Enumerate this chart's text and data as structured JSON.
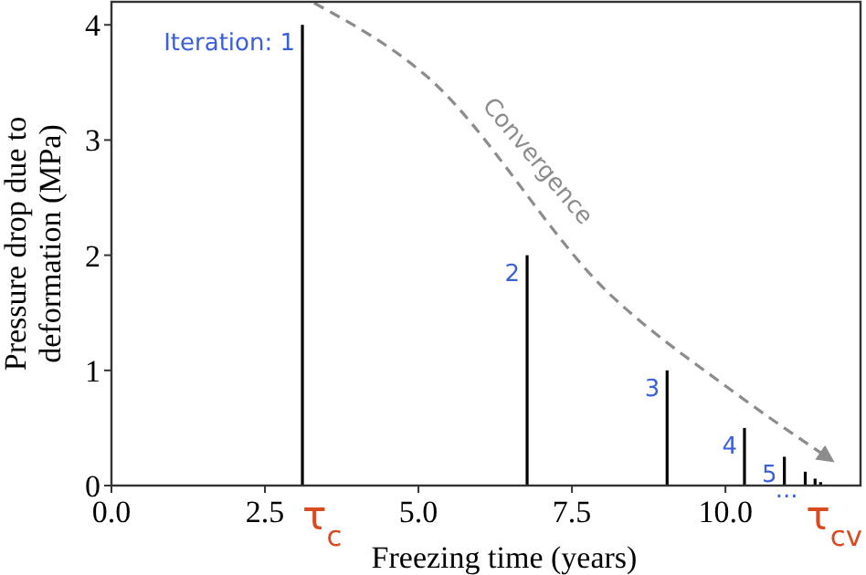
{
  "chart_data": {
    "type": "bar",
    "xlabel": "Freezing time (years)",
    "ylabel": "Pressure drop due to\ndeformation (MPa)",
    "xlim": [
      0,
      12.2
    ],
    "ylim": [
      0,
      4.2
    ],
    "xticks": [
      {
        "value": 0,
        "label": "0.0"
      },
      {
        "value": 2.5,
        "label": "2.5"
      },
      {
        "value": 5,
        "label": "5.0"
      },
      {
        "value": 7.5,
        "label": "7.5"
      },
      {
        "value": 10,
        "label": "10.0"
      }
    ],
    "yticks": [
      0,
      1,
      2,
      3,
      4
    ],
    "grid": false,
    "series": [
      {
        "color": "#000000",
        "x": [
          3.11,
          6.77,
          9.05,
          10.31,
          10.96,
          11.3,
          11.46,
          11.55
        ],
        "values": [
          4,
          2,
          1,
          0.5,
          0.25,
          0.12,
          0.06,
          0.03
        ]
      },
      {
        "type": "line",
        "name": "Convergence",
        "color": "#8c8c8c",
        "line_style": "dashed",
        "x": [
          3.3,
          5.12,
          8.1,
          10.09,
          11.73
        ],
        "values": [
          4.19,
          3.56,
          1.67,
          0.83,
          0.22
        ]
      }
    ],
    "annotations": [
      {
        "text": "Iteration: 1",
        "x": 3.11,
        "y": 4
      },
      {
        "text": "2",
        "x": 6.77,
        "y": 2
      },
      {
        "text": "3",
        "x": 9.05,
        "y": 1
      },
      {
        "text": "4",
        "x": 10.31,
        "y": 0.5
      },
      {
        "text": "5",
        "x": 10.96,
        "y": 0.25
      },
      {
        "text": "...",
        "x": 11.3,
        "y": 0.12
      },
      "τ$_{c}$",
      "τ$_{cv}$"
    ]
  }
}
